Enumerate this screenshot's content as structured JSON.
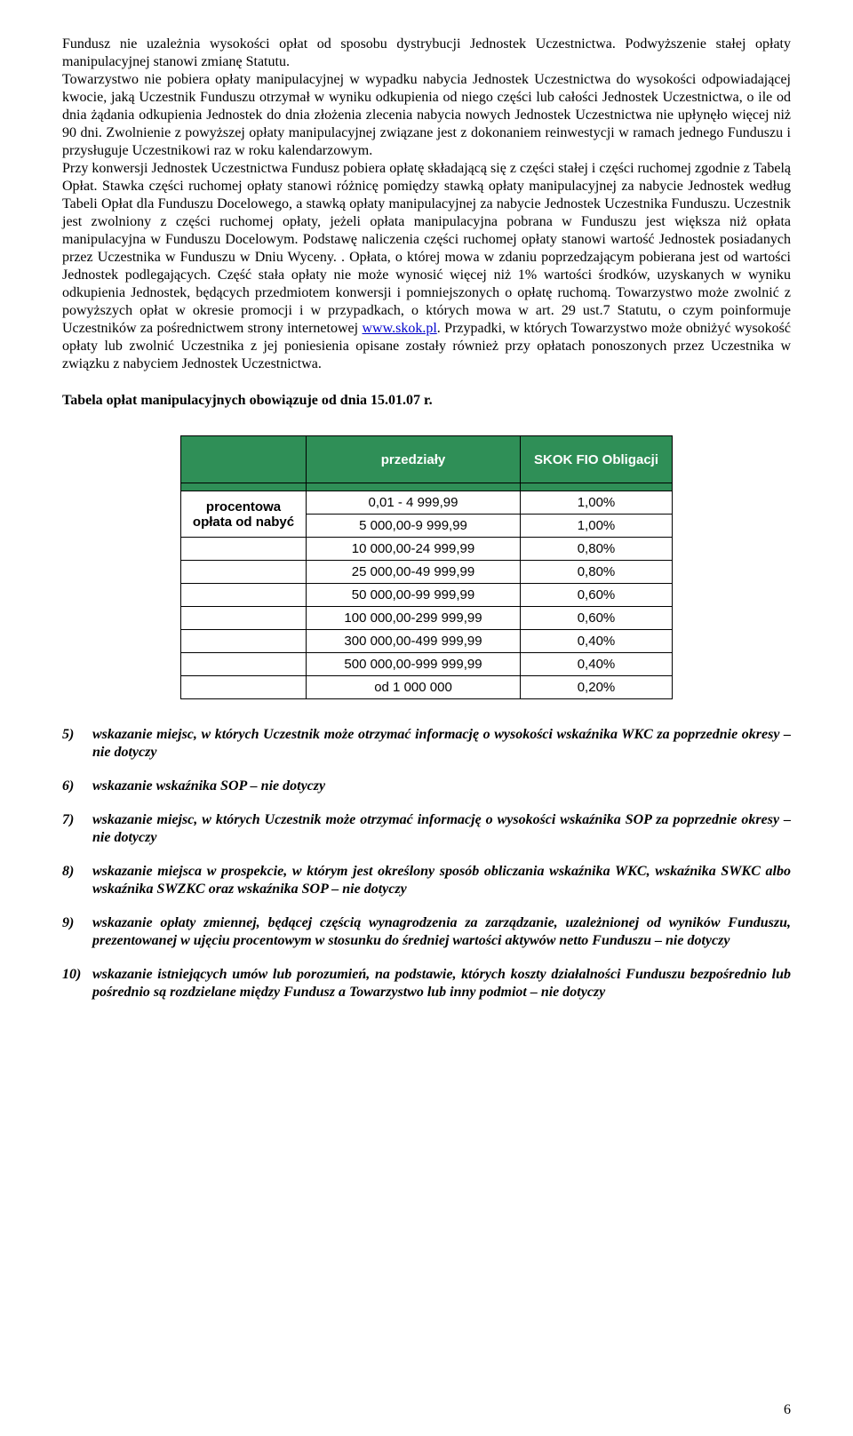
{
  "para1": "Fundusz nie uzależnia wysokości opłat od sposobu dystrybucji Jednostek Uczestnictwa. Podwyższenie stałej opłaty manipulacyjnej stanowi zmianę Statutu.",
  "para2a": "Towarzystwo nie pobiera opłaty manipulacyjnej w wypadku nabycia Jednostek Uczestnictwa do wysokości odpowiadającej kwocie, jaką Uczestnik Funduszu otrzymał w wyniku odkupienia od niego części lub całości Jednostek Uczestnictwa, o ile od dnia żądania odkupienia Jednostek do dnia złożenia zlecenia nabycia nowych Jednostek Uczestnictwa nie upłynęło więcej niż 90 dni. Zwolnienie z powyższej opłaty manipulacyjnej związane jest z dokonaniem reinwestycji w ramach jednego Funduszu i przysługuje Uczestnikowi raz w roku kalendarzowym.",
  "para2b": "Przy konwersji Jednostek Uczestnictwa Fundusz pobiera opłatę składającą się z części stałej i części ruchomej zgodnie z Tabelą Opłat. Stawka części ruchomej opłaty stanowi różnicę pomiędzy stawką opłaty manipulacyjnej za nabycie Jednostek według Tabeli Opłat dla Funduszu Docelowego, a stawką opłaty manipulacyjnej za nabycie Jednostek Uczestnika Funduszu. Uczestnik jest zwolniony z części ruchomej opłaty, jeżeli opłata manipulacyjna pobrana w Funduszu jest większa niż opłata manipulacyjna w Funduszu Docelowym. Podstawę naliczenia części ruchomej opłaty stanowi wartość Jednostek posiadanych przez Uczestnika w Funduszu w Dniu Wyceny. . Opłata, o której mowa w zdaniu poprzedzającym pobierana jest od wartości Jednostek podlegających. Część stała opłaty nie może wynosić więcej niż 1% wartości środków, uzyskanych w wyniku odkupienia Jednostek, będących przedmiotem konwersji i pomniejszonych o opłatę ruchomą. Towarzystwo może zwolnić z powyższych opłat w okresie promocji i w przypadkach, o których mowa w art. 29 ust.7 Statutu, o czym poinformuje Uczestników za pośrednictwem strony internetowej ",
  "link_text": "www.skok.pl",
  "para2c": ". Przypadki, w których Towarzystwo może obniżyć wysokość opłaty lub zwolnić Uczestnika z jej poniesienia opisane zostały również przy opłatach ponoszonych przez Uczestnika w związku z nabyciem Jednostek Uczestnictwa.",
  "table_heading": "Tabela opłat manipulacyjnych obowiązuje od dnia 15.01.07 r.",
  "table": {
    "col2_header": "przedziały",
    "col3_header": "SKOK FIO Obligacji",
    "rowhead": "procentowa opłata od nabyć",
    "rows": [
      {
        "range": "0,01 - 4 999,99",
        "value": "1,00%"
      },
      {
        "range": "5 000,00-9 999,99",
        "value": "1,00%"
      },
      {
        "range": "10 000,00-24 999,99",
        "value": "0,80%"
      },
      {
        "range": "25 000,00-49 999,99",
        "value": "0,80%"
      },
      {
        "range": "50 000,00-99 999,99",
        "value": "0,60%"
      },
      {
        "range": "100 000,00-299 999,99",
        "value": "0,60%"
      },
      {
        "range": "300 000,00-499 999,99",
        "value": "0,40%"
      },
      {
        "range": "500 000,00-999 999,99",
        "value": "0,40%"
      },
      {
        "range": "od 1 000 000",
        "value": "0,20%"
      }
    ]
  },
  "items": [
    {
      "n": "5)",
      "t": "wskazanie miejsc, w których Uczestnik może otrzymać informację o wysokości wskaźnika WKC za poprzednie okresy – nie dotyczy"
    },
    {
      "n": "6)",
      "t": "wskazanie wskaźnika SOP – nie dotyczy"
    },
    {
      "n": "7)",
      "t": "wskazanie miejsc, w których Uczestnik może otrzymać informację o wysokości wskaźnika SOP za poprzednie okresy – nie dotyczy"
    },
    {
      "n": "8)",
      "t": "wskazanie miejsca w prospekcie, w którym jest określony sposób obliczania wskaźnika WKC, wskaźnika SWKC albo wskaźnika SWZKC oraz wskaźnika SOP – nie dotyczy"
    },
    {
      "n": "9)",
      "t": "wskazanie opłaty zmiennej, będącej częścią wynagrodzenia za zarządzanie, uzależnionej od wyników Funduszu, prezentowanej w ujęciu procentowym w stosunku do średniej wartości aktywów netto Funduszu – nie dotyczy"
    },
    {
      "n": "10)",
      "t": "wskazanie istniejących umów  lub porozumień, na podstawie, których koszty działalności Funduszu bezpośrednio lub pośrednio są rozdzielane między Fundusz a Towarzystwo lub inny podmiot – nie dotyczy"
    }
  ],
  "page_number": "6"
}
